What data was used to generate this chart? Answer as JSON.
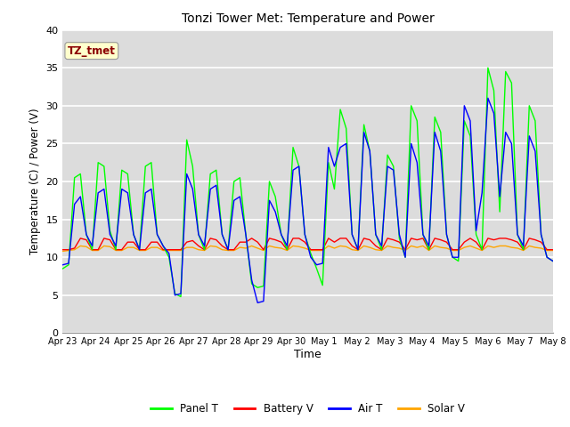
{
  "title": "Tonzi Tower Met: Temperature and Power",
  "xlabel": "Time",
  "ylabel": "Temperature (C) / Power (V)",
  "ylim": [
    0,
    40
  ],
  "yticks": [
    0,
    5,
    10,
    15,
    20,
    25,
    30,
    35,
    40
  ],
  "x_labels": [
    "Apr 23",
    "Apr 24",
    "Apr 25",
    "Apr 26",
    "Apr 27",
    "Apr 28",
    "Apr 29",
    "Apr 30",
    "May 1",
    "May 2",
    "May 3",
    "May 4",
    "May 5",
    "May 6",
    "May 7",
    "May 8"
  ],
  "annotation_text": "TZ_tmet",
  "annotation_color": "#8B0000",
  "annotation_bg": "#FFFFCC",
  "bg_color": "#DCDCDC",
  "panel_color": "#00FF00",
  "battery_color": "#FF0000",
  "air_color": "#0000FF",
  "solar_color": "#FFA500",
  "panel_label": "Panel T",
  "battery_label": "Battery V",
  "air_label": "Air T",
  "solar_label": "Solar V",
  "panel_T": [
    8.5,
    9.0,
    20.5,
    21.0,
    13.0,
    11.0,
    22.5,
    22.0,
    13.5,
    11.0,
    21.5,
    21.0,
    13.0,
    11.0,
    22.0,
    22.5,
    13.0,
    11.5,
    10.0,
    5.2,
    4.8,
    25.5,
    22.0,
    13.0,
    11.0,
    21.0,
    21.5,
    13.0,
    11.0,
    20.0,
    20.5,
    13.0,
    6.5,
    6.0,
    6.2,
    20.0,
    18.0,
    13.0,
    11.0,
    24.5,
    22.0,
    13.0,
    10.5,
    8.5,
    6.3,
    22.5,
    19.0,
    29.5,
    27.0,
    13.0,
    11.0,
    27.5,
    24.0,
    13.0,
    11.0,
    23.5,
    22.0,
    12.5,
    10.0,
    30.0,
    28.0,
    13.0,
    11.0,
    28.5,
    26.5,
    13.0,
    10.0,
    9.5,
    28.0,
    26.0,
    13.0,
    11.0,
    35.0,
    32.0,
    16.0,
    34.5,
    33.0,
    13.0,
    11.0,
    30.0,
    28.0,
    13.0,
    10.0,
    9.5
  ],
  "battery_V": [
    11.0,
    11.0,
    11.2,
    12.5,
    12.3,
    11.0,
    11.0,
    12.5,
    12.3,
    11.0,
    11.0,
    12.0,
    12.0,
    11.0,
    11.0,
    12.0,
    12.0,
    11.0,
    11.0,
    11.0,
    11.0,
    12.0,
    12.2,
    11.5,
    11.0,
    12.5,
    12.3,
    11.5,
    11.0,
    11.0,
    12.0,
    12.0,
    12.5,
    12.0,
    11.0,
    12.5,
    12.3,
    12.0,
    11.0,
    12.5,
    12.5,
    12.0,
    11.0,
    11.0,
    11.0,
    12.5,
    12.0,
    12.5,
    12.5,
    11.5,
    11.0,
    12.5,
    12.3,
    11.5,
    11.0,
    12.5,
    12.3,
    12.0,
    11.0,
    12.5,
    12.3,
    12.5,
    11.0,
    12.5,
    12.3,
    12.0,
    11.0,
    11.0,
    12.0,
    12.5,
    12.0,
    11.0,
    12.5,
    12.3,
    12.5,
    12.5,
    12.3,
    12.0,
    11.0,
    12.5,
    12.3,
    12.0,
    11.0,
    11.0
  ],
  "air_T": [
    9.0,
    9.2,
    17.0,
    18.0,
    13.0,
    11.5,
    18.5,
    19.0,
    13.0,
    11.5,
    19.0,
    18.5,
    13.0,
    11.0,
    18.5,
    19.0,
    13.0,
    11.5,
    10.5,
    5.0,
    5.2,
    21.0,
    19.0,
    13.0,
    11.5,
    19.0,
    19.5,
    13.0,
    11.0,
    17.5,
    18.0,
    13.0,
    7.0,
    4.0,
    4.2,
    17.5,
    16.0,
    13.0,
    11.5,
    21.5,
    22.0,
    13.0,
    10.0,
    9.0,
    9.2,
    24.5,
    22.0,
    24.5,
    25.0,
    13.0,
    11.0,
    26.5,
    24.0,
    13.0,
    11.5,
    22.0,
    21.5,
    13.0,
    10.0,
    25.0,
    22.5,
    13.0,
    11.5,
    26.5,
    24.0,
    13.0,
    10.0,
    10.0,
    30.0,
    28.0,
    13.5,
    18.5,
    31.0,
    29.0,
    18.0,
    26.5,
    25.0,
    13.0,
    11.5,
    26.0,
    24.0,
    13.0,
    10.0,
    9.5
  ],
  "solar_V": [
    10.8,
    10.9,
    11.0,
    11.5,
    11.4,
    10.9,
    10.9,
    11.5,
    11.4,
    10.9,
    10.9,
    11.3,
    11.3,
    10.9,
    10.9,
    11.3,
    11.3,
    10.9,
    10.9,
    10.9,
    10.9,
    11.3,
    11.3,
    11.0,
    10.9,
    11.5,
    11.4,
    11.0,
    10.9,
    10.9,
    11.3,
    11.2,
    11.5,
    11.2,
    10.9,
    11.5,
    11.3,
    11.2,
    10.9,
    11.5,
    11.4,
    11.2,
    10.9,
    10.9,
    10.9,
    11.5,
    11.2,
    11.5,
    11.4,
    11.0,
    10.9,
    11.5,
    11.3,
    11.0,
    10.9,
    11.5,
    11.3,
    11.2,
    10.9,
    11.5,
    11.3,
    11.5,
    10.9,
    11.5,
    11.3,
    11.2,
    10.9,
    10.9,
    11.3,
    11.5,
    11.2,
    10.9,
    11.5,
    11.3,
    11.5,
    11.5,
    11.3,
    11.2,
    10.9,
    11.5,
    11.3,
    11.2,
    10.9,
    10.9
  ]
}
